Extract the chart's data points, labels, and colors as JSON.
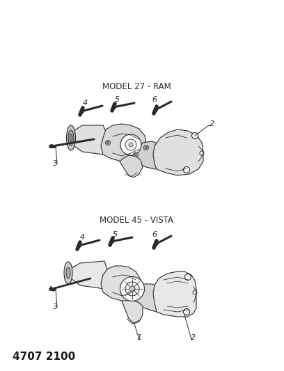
{
  "title": "4707 2100",
  "bg_color": "#ffffff",
  "text_color": "#1a1a1a",
  "diagram1_label": "MODEL 45 - VISTA",
  "diagram2_label": "MODEL 27 - RAM",
  "header_fontsize": 11,
  "label_fontsize": 8.5
}
